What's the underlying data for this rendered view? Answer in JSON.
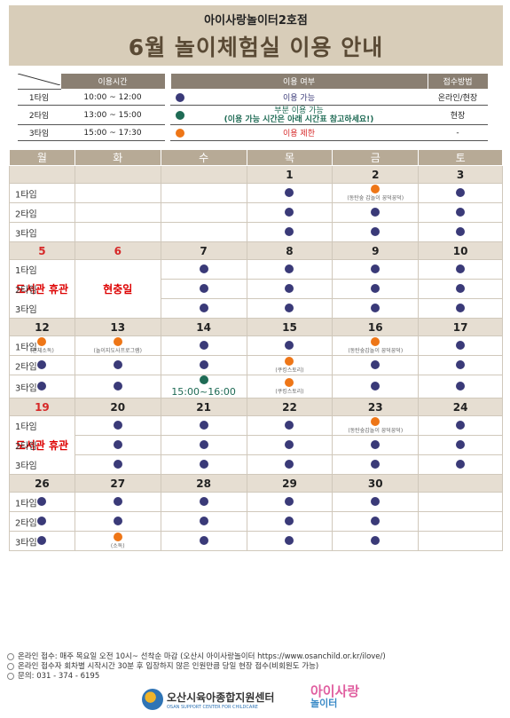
{
  "header": {
    "subtitle": "아이사랑놀이터2호점",
    "title": "6월 놀이체험실 이용 안내"
  },
  "info": {
    "col_time": "이용시간",
    "col_use": "이용 여부",
    "col_method": "접수방법",
    "rows": [
      {
        "type": "1타임",
        "time": "10:00 ~ 12:00",
        "color": "#3a3a78",
        "use": "이용 가능",
        "method": "온라인/현장"
      },
      {
        "type": "2타임",
        "time": "13:00 ~ 15:00",
        "color": "#1f6b55",
        "use": "부분 이용 가능",
        "use2": "(이용 가능 시간은 아래 시간표 참고하세요!)",
        "method": "현장"
      },
      {
        "type": "3타임",
        "time": "15:00 ~ 17:30",
        "color": "#ee7617",
        "use": "이용 제한",
        "method": "-"
      }
    ]
  },
  "days": [
    "월",
    "화",
    "수",
    "목",
    "금",
    "토"
  ],
  "slots": [
    "1타임",
    "2타임",
    "3타임"
  ],
  "weeks": [
    {
      "dates": [
        "",
        "",
        "",
        "1",
        "2",
        "3"
      ],
      "red": [],
      "cells": [
        [
          "",
          "",
          "",
          "n",
          "o|(동탄숲 갑놀이 꿍덕꿍덕)",
          "n"
        ],
        [
          "",
          "",
          "",
          "n",
          "n",
          "n"
        ],
        [
          "",
          "",
          "",
          "n",
          "n",
          "n"
        ]
      ]
    },
    {
      "dates": [
        "5",
        "6",
        "7",
        "8",
        "9",
        "10"
      ],
      "red": [
        0,
        1
      ],
      "cells": [
        [
          "H",
          "H",
          "n",
          "n",
          "n",
          "n"
        ],
        [
          "H",
          "H",
          "n",
          "n",
          "n",
          "n"
        ],
        [
          "H",
          "H",
          "n",
          "n",
          "n",
          "n"
        ]
      ],
      "holiday": [
        "도서관 휴관",
        "현충일"
      ]
    },
    {
      "dates": [
        "12",
        "13",
        "14",
        "15",
        "16",
        "17"
      ],
      "red": [],
      "cells": [
        [
          "o|(전체소독)",
          "o|(놀이지도사프로그램)",
          "n",
          "n",
          "o|(동탄숲갑놀이 꿍덕꿍덕)",
          "n"
        ],
        [
          "n",
          "n",
          "n",
          "o|(쿠킹스토리)",
          "n",
          "n"
        ],
        [
          "n",
          "n",
          "g|15:00~16:00",
          "o|(쿠킹스토리)",
          "n",
          "n"
        ]
      ]
    },
    {
      "dates": [
        "19",
        "20",
        "21",
        "22",
        "23",
        "24"
      ],
      "red": [
        0
      ],
      "cells": [
        [
          "H",
          "n",
          "n",
          "n",
          "o|(동탄숲갑놀이 꿍덕꿍덕)",
          "n"
        ],
        [
          "H",
          "n",
          "n",
          "n",
          "n",
          "n"
        ],
        [
          "H",
          "n",
          "n",
          "n",
          "n",
          "n"
        ]
      ],
      "holiday": [
        "도서관 휴관"
      ]
    },
    {
      "dates": [
        "26",
        "27",
        "28",
        "29",
        "30",
        ""
      ],
      "red": [],
      "cells": [
        [
          "n",
          "n",
          "n",
          "n",
          "n",
          ""
        ],
        [
          "n",
          "n",
          "n",
          "n",
          "n",
          ""
        ],
        [
          "n",
          "o|(소독)",
          "n",
          "n",
          "n",
          ""
        ]
      ]
    }
  ],
  "footer": [
    "온라인 접수: 매주 목요일 오전 10시~ 선착순 마감 (오산시 아이사랑놀이터 https://www.osanchild.or.kr/ilove/)",
    "온라인 접수자 회차별 시작시간 30분 후 입장하지 않은 인원만큼 당일 현장 접수(비회원도 가능)",
    "문의: 031 - 374 - 6195"
  ],
  "logo1": {
    "name": "오산시육아종합지원센터",
    "sub": "OSAN SUPPORT CENTER FOR CHILDCARE"
  },
  "logo2": {
    "top": "아이사랑",
    "bottom": "놀이터"
  }
}
